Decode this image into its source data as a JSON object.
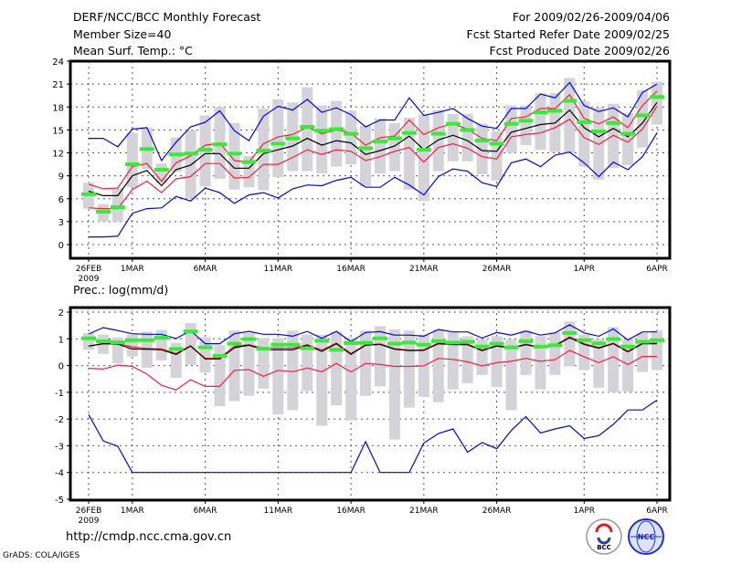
{
  "header": {
    "title": "DERF/NCC/BCC Monthly Forecast",
    "member_size": "Member Size=40",
    "variable": "Mean Surf. Temp.: °C",
    "period": "For 2009/02/26-2009/04/06",
    "refer_date": "Fcst Started Refer Date 2009/02/25",
    "produced_date": "Fcst Produced Date 2009/02/26"
  },
  "footer": {
    "url": "http://cmdp.ncc.cma.gov.cn",
    "credit": "GrADS: COLA/IGES",
    "logo_bcc": "BCC",
    "logo_ncc": "NCC"
  },
  "colors": {
    "max_min": "#0000ff",
    "spread": "#ff1a40",
    "mean": "#000000",
    "obs": "#33ee33",
    "box": "#d3d3d8"
  },
  "chart_data": [
    {
      "type": "line",
      "title": "Mean Surf. Temp.: °C",
      "x_tick_labels": [
        {
          "day": 0,
          "label": "26FEB"
        },
        {
          "day": 3,
          "label": "1MAR"
        },
        {
          "day": 8,
          "label": "6MAR"
        },
        {
          "day": 13,
          "label": "11MAR"
        },
        {
          "day": 18,
          "label": "16MAR"
        },
        {
          "day": 23,
          "label": "21MAR"
        },
        {
          "day": 28,
          "label": "26MAR"
        },
        {
          "day": 34,
          "label": "1APR"
        },
        {
          "day": 39,
          "label": "6APR"
        }
      ],
      "year_label": "2009",
      "ylim": [
        0,
        24
      ],
      "yticks": [
        0,
        3,
        6,
        9,
        12,
        15,
        18,
        21,
        24
      ],
      "grid": true,
      "series": [
        {
          "name": "max",
          "color": "#0000ff",
          "values": [
            13.9,
            13.9,
            12.8,
            15.1,
            15.3,
            11.0,
            13.4,
            15.4,
            16.0,
            17.5,
            14.9,
            13.6,
            16.8,
            18.1,
            17.6,
            19.0,
            17.3,
            17.9,
            17.0,
            15.4,
            16.3,
            16.3,
            19.2,
            16.9,
            17.3,
            17.8,
            16.5,
            15.5,
            15.2,
            17.8,
            17.8,
            19.7,
            19.2,
            21.2,
            18.2,
            17.4,
            17.9,
            16.7,
            19.9,
            21.0
          ]
        },
        {
          "name": "upper",
          "color": "#ff1a40",
          "values": [
            7.9,
            7.3,
            7.4,
            10.2,
            10.6,
            8.3,
            10.7,
            11.6,
            13.0,
            13.3,
            11.0,
            10.8,
            13.2,
            14.1,
            14.4,
            15.4,
            14.5,
            15.0,
            14.6,
            13.0,
            14.0,
            14.2,
            16.3,
            14.4,
            15.3,
            15.8,
            15.1,
            13.9,
            13.6,
            16.5,
            16.7,
            17.8,
            17.8,
            19.6,
            16.5,
            15.8,
            16.7,
            15.3,
            18.2,
            20.1
          ]
        },
        {
          "name": "mean",
          "color": "#000000",
          "values": [
            7.0,
            6.4,
            6.4,
            9.0,
            9.7,
            7.7,
            9.8,
            10.4,
            11.9,
            11.9,
            10.0,
            10.0,
            11.9,
            12.4,
            12.9,
            13.9,
            13.0,
            13.6,
            13.3,
            11.8,
            12.3,
            12.9,
            14.2,
            12.4,
            13.7,
            14.3,
            13.6,
            12.3,
            12.2,
            14.7,
            15.2,
            15.7,
            15.9,
            17.6,
            15.3,
            14.1,
            15.2,
            14.1,
            15.9,
            18.6
          ]
        },
        {
          "name": "lower",
          "color": "#ff1a40",
          "values": [
            4.8,
            4.7,
            4.7,
            7.2,
            8.3,
            6.8,
            8.6,
            8.9,
            10.6,
            10.6,
            8.7,
            8.8,
            10.5,
            10.5,
            11.4,
            12.4,
            11.8,
            12.4,
            12.2,
            11.0,
            11.5,
            12.2,
            12.7,
            10.8,
            12.7,
            13.2,
            12.6,
            11.5,
            11.2,
            14.1,
            14.4,
            14.6,
            15.3,
            16.4,
            14.0,
            13.1,
            14.3,
            13.4,
            15.1,
            18.1
          ]
        },
        {
          "name": "min",
          "color": "#0000ff",
          "values": [
            1.0,
            1.0,
            1.1,
            4.1,
            4.7,
            4.8,
            6.3,
            5.7,
            7.4,
            6.8,
            5.4,
            6.5,
            6.8,
            6.1,
            7.3,
            7.8,
            7.7,
            8.4,
            8.8,
            7.5,
            7.5,
            8.8,
            7.8,
            6.5,
            8.9,
            9.9,
            9.6,
            8.1,
            7.6,
            10.7,
            11.2,
            10.2,
            11.7,
            12.1,
            10.7,
            8.9,
            10.8,
            9.8,
            11.5,
            14.6
          ]
        },
        {
          "name": "observed",
          "color": "#33ee33",
          "values": [
            6.6,
            4.3,
            4.9,
            10.5,
            12.5,
            9.8,
            11.8,
            11.9,
            12.4,
            13.1,
            11.9,
            10.8,
            12.3,
            13.2,
            13.9,
            15.4,
            14.9,
            15.1,
            14.5,
            12.6,
            13.5,
            13.9,
            14.6,
            12.4,
            14.5,
            15.8,
            15.0,
            13.6,
            13.2,
            15.8,
            16.2,
            17.3,
            17.5,
            18.8,
            16.0,
            14.8,
            15.9,
            14.5,
            16.9,
            19.3
          ]
        }
      ],
      "box_low": [
        4.7,
        3.0,
        3.0,
        7.5,
        9.9,
        8.0,
        9.5,
        6.0,
        7.6,
        8.6,
        7.2,
        7.5,
        7.1,
        8.8,
        9.6,
        9.6,
        9.3,
        10.2,
        10.5,
        7.6,
        9.3,
        9.6,
        7.2,
        5.7,
        9.6,
        10.9,
        10.9,
        9.2,
        8.4,
        12.0,
        13.0,
        12.4,
        12.1,
        12.0,
        10.2,
        8.5,
        10.0,
        10.4,
        12.7,
        15.7
      ],
      "box_high": [
        8.1,
        5.3,
        7.4,
        14.6,
        15.3,
        10.6,
        14.0,
        15.0,
        16.9,
        18.0,
        15.9,
        11.6,
        17.8,
        19.0,
        18.6,
        20.6,
        18.2,
        18.8,
        17.5,
        15.6,
        16.5,
        15.9,
        16.6,
        17.0,
        17.6,
        17.1,
        17.1,
        15.8,
        14.8,
        18.2,
        18.2,
        19.8,
        19.8,
        21.8,
        18.7,
        17.9,
        18.4,
        17.2,
        20.2,
        21.3
      ]
    },
    {
      "type": "line",
      "title": "Prec.: log(mm/d)",
      "x_tick_labels": [
        {
          "day": 0,
          "label": "26FEB"
        },
        {
          "day": 3,
          "label": "1MAR"
        },
        {
          "day": 8,
          "label": "6MAR"
        },
        {
          "day": 13,
          "label": "11MAR"
        },
        {
          "day": 18,
          "label": "16MAR"
        },
        {
          "day": 23,
          "label": "21MAR"
        },
        {
          "day": 28,
          "label": "26MAR"
        },
        {
          "day": 34,
          "label": "1APR"
        },
        {
          "day": 39,
          "label": "6APR"
        }
      ],
      "year_label": "2009",
      "ylim": [
        -5,
        2
      ],
      "yticks": [
        -5,
        -4,
        -3,
        -2,
        -1,
        0,
        1,
        2
      ],
      "grid": true,
      "series": [
        {
          "name": "max",
          "color": "#0000ff",
          "values": [
            1.18,
            1.42,
            1.31,
            1.19,
            1.17,
            1.17,
            1.01,
            1.31,
            0.82,
            0.82,
            1.19,
            1.28,
            1.17,
            1.17,
            1.1,
            1.28,
            1.02,
            1.28,
            0.9,
            1.24,
            1.27,
            1.14,
            1.14,
            1.1,
            1.35,
            1.26,
            1.26,
            1.03,
            1.24,
            1.14,
            1.29,
            1.14,
            1.22,
            1.53,
            1.22,
            1.1,
            1.37,
            0.96,
            1.26,
            1.26
          ]
        },
        {
          "name": "upper",
          "color": "#ff1a40",
          "values": [
            0.72,
            0.83,
            0.83,
            0.7,
            0.64,
            0.62,
            0.45,
            0.74,
            0.27,
            0.28,
            0.72,
            0.78,
            0.65,
            0.65,
            0.65,
            0.78,
            0.58,
            0.84,
            0.45,
            0.78,
            0.81,
            0.63,
            0.58,
            0.59,
            0.84,
            0.8,
            0.8,
            0.58,
            0.75,
            0.67,
            0.8,
            0.69,
            0.76,
            1.07,
            0.82,
            0.67,
            0.84,
            0.54,
            0.84,
            0.84
          ]
        },
        {
          "name": "mean",
          "color": "#000000",
          "values": [
            0.73,
            0.82,
            0.8,
            0.62,
            0.61,
            0.59,
            0.42,
            0.73,
            0.25,
            0.25,
            0.67,
            0.76,
            0.59,
            0.59,
            0.59,
            0.76,
            0.53,
            0.82,
            0.42,
            0.76,
            0.79,
            0.61,
            0.56,
            0.57,
            0.82,
            0.78,
            0.78,
            0.56,
            0.73,
            0.65,
            0.78,
            0.67,
            0.74,
            1.04,
            0.79,
            0.65,
            0.82,
            0.51,
            0.82,
            0.82
          ]
        },
        {
          "name": "lower",
          "color": "#ff1a40",
          "values": [
            -0.1,
            -0.13,
            0.02,
            -0.03,
            -0.32,
            -0.74,
            -0.91,
            -0.53,
            -0.78,
            -0.78,
            -0.18,
            -0.15,
            -0.4,
            -0.18,
            -0.23,
            -0.09,
            -0.23,
            0.08,
            -0.24,
            0.08,
            0.04,
            -0.03,
            -0.03,
            -0.01,
            0.27,
            0.23,
            0.14,
            -0.01,
            0.11,
            0.16,
            0.27,
            0.16,
            0.22,
            0.57,
            0.33,
            0.11,
            0.33,
            0.04,
            0.34,
            0.34
          ]
        },
        {
          "name": "min",
          "color": "#0000ff",
          "values": [
            -1.83,
            -2.82,
            -3.02,
            -4,
            -4,
            -4,
            -4,
            -4,
            -4,
            -4,
            -4,
            -4,
            -4,
            -4,
            -4,
            -4,
            -4,
            -4,
            -4,
            -2.85,
            -4,
            -4,
            -4,
            -2.9,
            -2.54,
            -2.37,
            -3.24,
            -2.88,
            -3.11,
            -2.43,
            -1.91,
            -2.52,
            -2.37,
            -2.25,
            -2.73,
            -2.62,
            -2.2,
            -1.66,
            -1.66,
            -1.29
          ]
        },
        {
          "name": "observed",
          "color": "#33ee33",
          "values": [
            1.02,
            0.91,
            0.87,
            0.95,
            0.95,
            1.04,
            0.62,
            1.28,
            0.68,
            0.36,
            0.82,
            0.99,
            0.63,
            0.78,
            0.78,
            0.65,
            0.93,
            0.59,
            0.84,
            0.85,
            1.02,
            0.82,
            0.86,
            0.78,
            0.91,
            0.86,
            0.89,
            0.71,
            0.82,
            0.68,
            0.91,
            0.71,
            0.76,
            1.22,
            0.95,
            0.83,
            0.99,
            0.71,
            0.89,
            0.95
          ]
        }
      ],
      "box_low": [
        0.59,
        0.44,
        0.08,
        0.34,
        -0.08,
        0.19,
        -0.46,
        0.03,
        -0.26,
        -1.52,
        -1.33,
        -1.13,
        -0.86,
        -1.83,
        -1.67,
        -0.95,
        -2.25,
        -1.49,
        -2.05,
        -1.13,
        -0.78,
        -2.77,
        -1.57,
        -1.17,
        -1.37,
        -0.89,
        -0.66,
        -0.35,
        -0.81,
        -1.67,
        -0.35,
        -0.89,
        -0.35,
        -0.03,
        -0.17,
        -0.83,
        -1.0,
        -0.97,
        -0.24,
        -0.17
      ],
      "box_high": [
        1.22,
        1.16,
        1.05,
        1.16,
        1.27,
        1.33,
        0.85,
        1.59,
        1.06,
        0.76,
        1.31,
        1.22,
        1.03,
        1.03,
        1.31,
        1.16,
        1.16,
        1.27,
        1.03,
        1.31,
        1.47,
        1.35,
        1.31,
        1.16,
        1.35,
        1.26,
        1.1,
        0.99,
        1.1,
        0.99,
        1.31,
        1.1,
        1.24,
        1.65,
        1.16,
        0.99,
        1.44,
        0.99,
        1.22,
        1.31
      ]
    }
  ]
}
